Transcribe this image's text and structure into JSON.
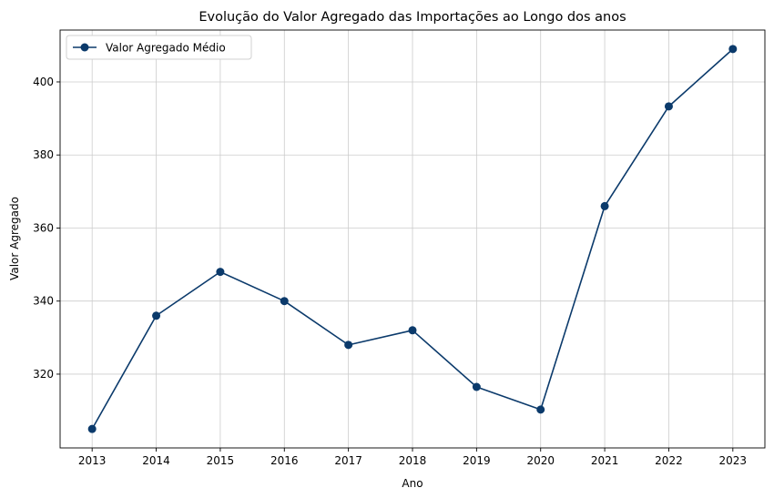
{
  "chart_data": {
    "type": "line",
    "title": "Evolução do Valor Agregado das Importações ao Longo dos anos",
    "xlabel": "Ano",
    "ylabel": "Valor Agregado",
    "x": [
      2013,
      2014,
      2015,
      2016,
      2017,
      2018,
      2019,
      2020,
      2021,
      2022,
      2023
    ],
    "series": [
      {
        "name": "Valor Agregado Médio",
        "values": [
          305,
          336,
          348,
          340,
          328,
          332,
          316.5,
          310.3,
          366,
          393.3,
          409
        ],
        "color": "#0b3a6b",
        "marker": "circle"
      }
    ],
    "xlim": [
      2012.5,
      2023.5
    ],
    "ylim": [
      299.8,
      414.2
    ],
    "yticks": [
      320,
      340,
      360,
      380,
      400
    ],
    "grid": true,
    "legend_position": "upper-left"
  }
}
